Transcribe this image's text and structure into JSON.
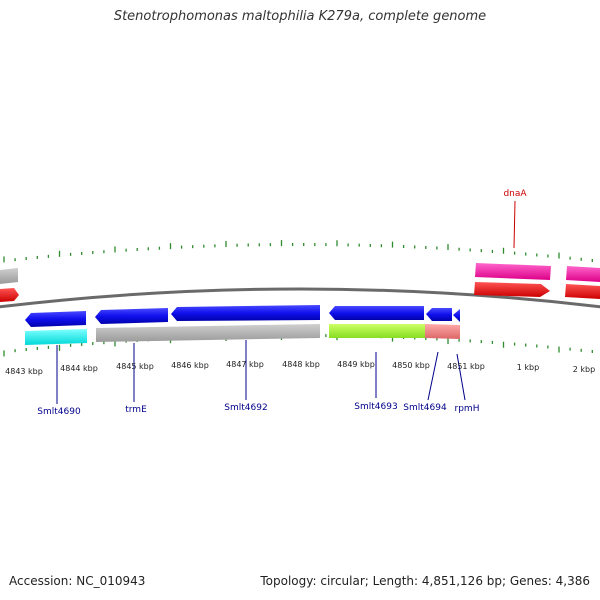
{
  "title": "Stenotrophomonas maltophilia K279a, complete genome",
  "footer": {
    "accession": "Accession: NC_010943",
    "summary": "Topology: circular; Length: 4,851,126 bp; Genes: 4,386"
  },
  "colors": {
    "backbone": "#666666",
    "tick": "#2e8b2e",
    "gene_label": "#00008b",
    "highlight_label": "#cc0000",
    "blue_gene": "#1a1aff",
    "gray_gene": "#b0b0b0",
    "cyan_gene": "#00ffff",
    "green_gene": "#aaff33",
    "salmon_gene": "#ee8080",
    "magenta_gene": "#ff1ca4",
    "red_gene": "#ff0000"
  },
  "tick_labels": [
    "4843 kbp",
    "4844 kbp",
    "4845 kbp",
    "4846 kbp",
    "4847 kbp",
    "4848 kbp",
    "4849 kbp",
    "4850 kbp",
    "4851 kbp",
    "1 kbp",
    "2 kbp"
  ],
  "gene_labels": {
    "smlt4690": "Smlt4690",
    "trmE": "trmE",
    "smlt4692": "Smlt4692",
    "smlt4693": "Smlt4693",
    "smlt4694": "Smlt4694",
    "rpmH": "rpmH",
    "dnaA": "dnaA"
  }
}
